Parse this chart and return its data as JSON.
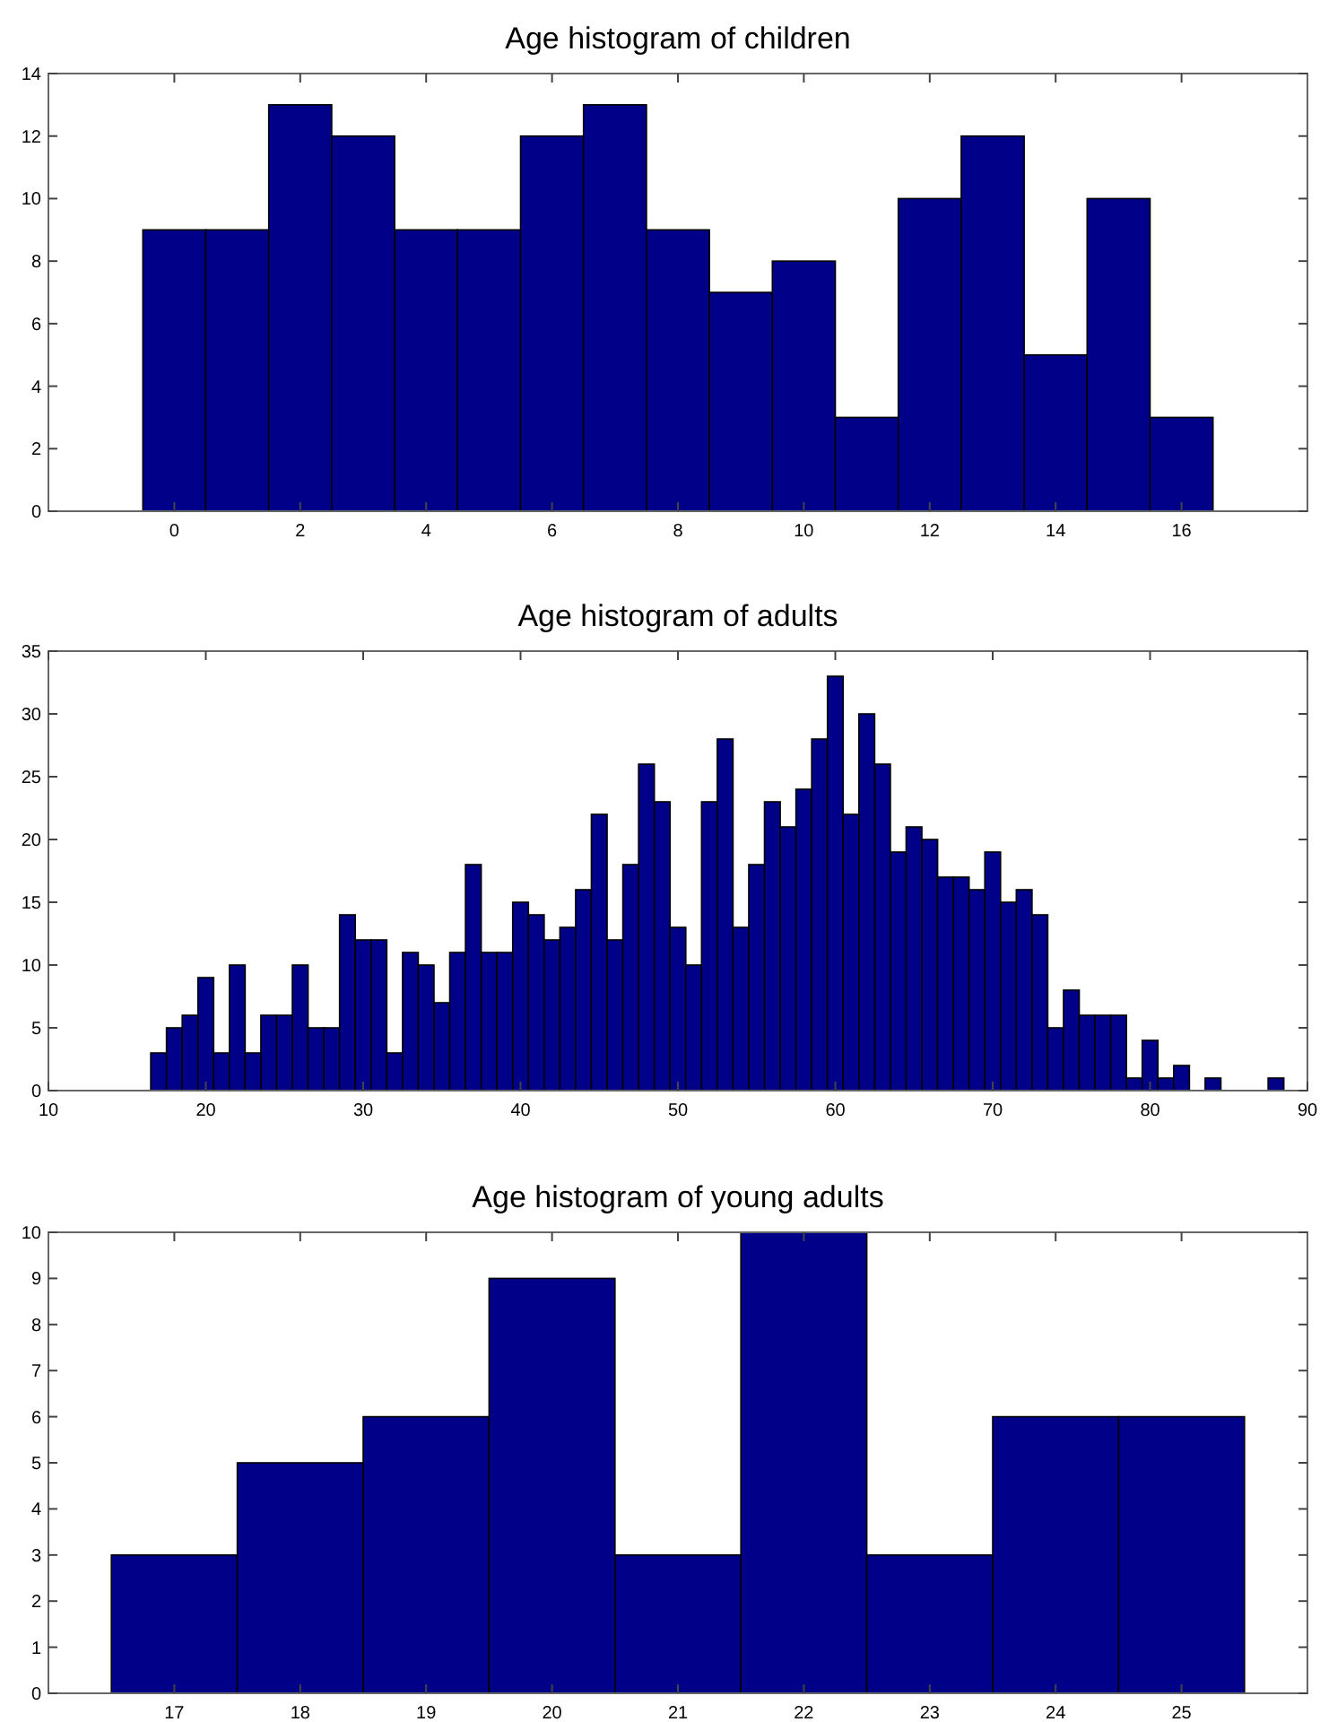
{
  "chart_data": [
    {
      "type": "histogram",
      "title": "Age histogram of children",
      "bins": [
        -0.5,
        0.5,
        1.5,
        2.5,
        3.5,
        4.5,
        5.5,
        6.5,
        7.5,
        8.5,
        9.5,
        10.5,
        11.5,
        12.5,
        13.5,
        14.5,
        15.5,
        16.5
      ],
      "values": [
        9,
        9,
        13,
        12,
        9,
        9,
        12,
        13,
        9,
        7,
        8,
        3,
        10,
        12,
        5,
        10,
        3
      ],
      "color": "#000088",
      "xlim": [
        -2,
        18
      ],
      "xticks": [
        0,
        2,
        4,
        6,
        8,
        10,
        12,
        14,
        16
      ],
      "ylim": [
        0,
        14
      ],
      "yticks": [
        0,
        2,
        4,
        6,
        8,
        10,
        12,
        14
      ],
      "grid": false
    },
    {
      "type": "histogram",
      "title": "Age histogram of adults",
      "bins": [
        16.5,
        17.5,
        18.5,
        19.5,
        20.5,
        21.5,
        22.5,
        23.5,
        24.5,
        25.5,
        26.5,
        27.5,
        28.5,
        29.5,
        30.5,
        31.5,
        32.5,
        33.5,
        34.5,
        35.5,
        36.5,
        37.5,
        38.5,
        39.5,
        40.5,
        41.5,
        42.5,
        43.5,
        44.5,
        45.5,
        46.5,
        47.5,
        48.5,
        49.5,
        50.5,
        51.5,
        52.5,
        53.5,
        54.5,
        55.5,
        56.5,
        57.5,
        58.5,
        59.5,
        60.5,
        61.5,
        62.5,
        63.5,
        64.5,
        65.5,
        66.5,
        67.5,
        68.5,
        69.5,
        70.5,
        71.5,
        72.5,
        73.5,
        74.5,
        75.5,
        76.5,
        77.5,
        78.5,
        79.5,
        80.5,
        81.5,
        82.5,
        83.5,
        84.5,
        85.5,
        86.5,
        87.5,
        88.5
      ],
      "values": [
        3,
        5,
        6,
        9,
        3,
        10,
        3,
        6,
        6,
        10,
        5,
        5,
        14,
        12,
        12,
        3,
        11,
        10,
        7,
        11,
        18,
        11,
        11,
        15,
        14,
        12,
        13,
        16,
        22,
        12,
        18,
        26,
        23,
        13,
        10,
        23,
        28,
        13,
        18,
        23,
        21,
        24,
        28,
        33,
        22,
        30,
        26,
        19,
        21,
        20,
        17,
        17,
        16,
        19,
        15,
        16,
        14,
        5,
        8,
        6,
        6,
        6,
        1,
        4,
        1,
        2,
        0,
        1,
        0,
        0,
        0,
        1
      ],
      "color": "#000088",
      "xlim": [
        10,
        90
      ],
      "xticks": [
        10,
        20,
        30,
        40,
        50,
        60,
        70,
        80,
        90
      ],
      "ylim": [
        0,
        35
      ],
      "yticks": [
        0,
        5,
        10,
        15,
        20,
        25,
        30,
        35
      ],
      "grid": false
    },
    {
      "type": "histogram",
      "title": "Age histogram of young adults",
      "bins": [
        16.5,
        17.5,
        18.5,
        19.5,
        20.5,
        21.5,
        22.5,
        23.5,
        24.5,
        25.5
      ],
      "values": [
        3,
        5,
        6,
        9,
        3,
        10,
        3,
        6,
        6
      ],
      "color": "#000088",
      "xlim": [
        16,
        26
      ],
      "xticks": [
        17,
        18,
        19,
        20,
        21,
        22,
        23,
        24,
        25
      ],
      "ylim": [
        0,
        10
      ],
      "yticks": [
        0,
        1,
        2,
        3,
        4,
        5,
        6,
        7,
        8,
        9,
        10
      ],
      "grid": false
    }
  ]
}
